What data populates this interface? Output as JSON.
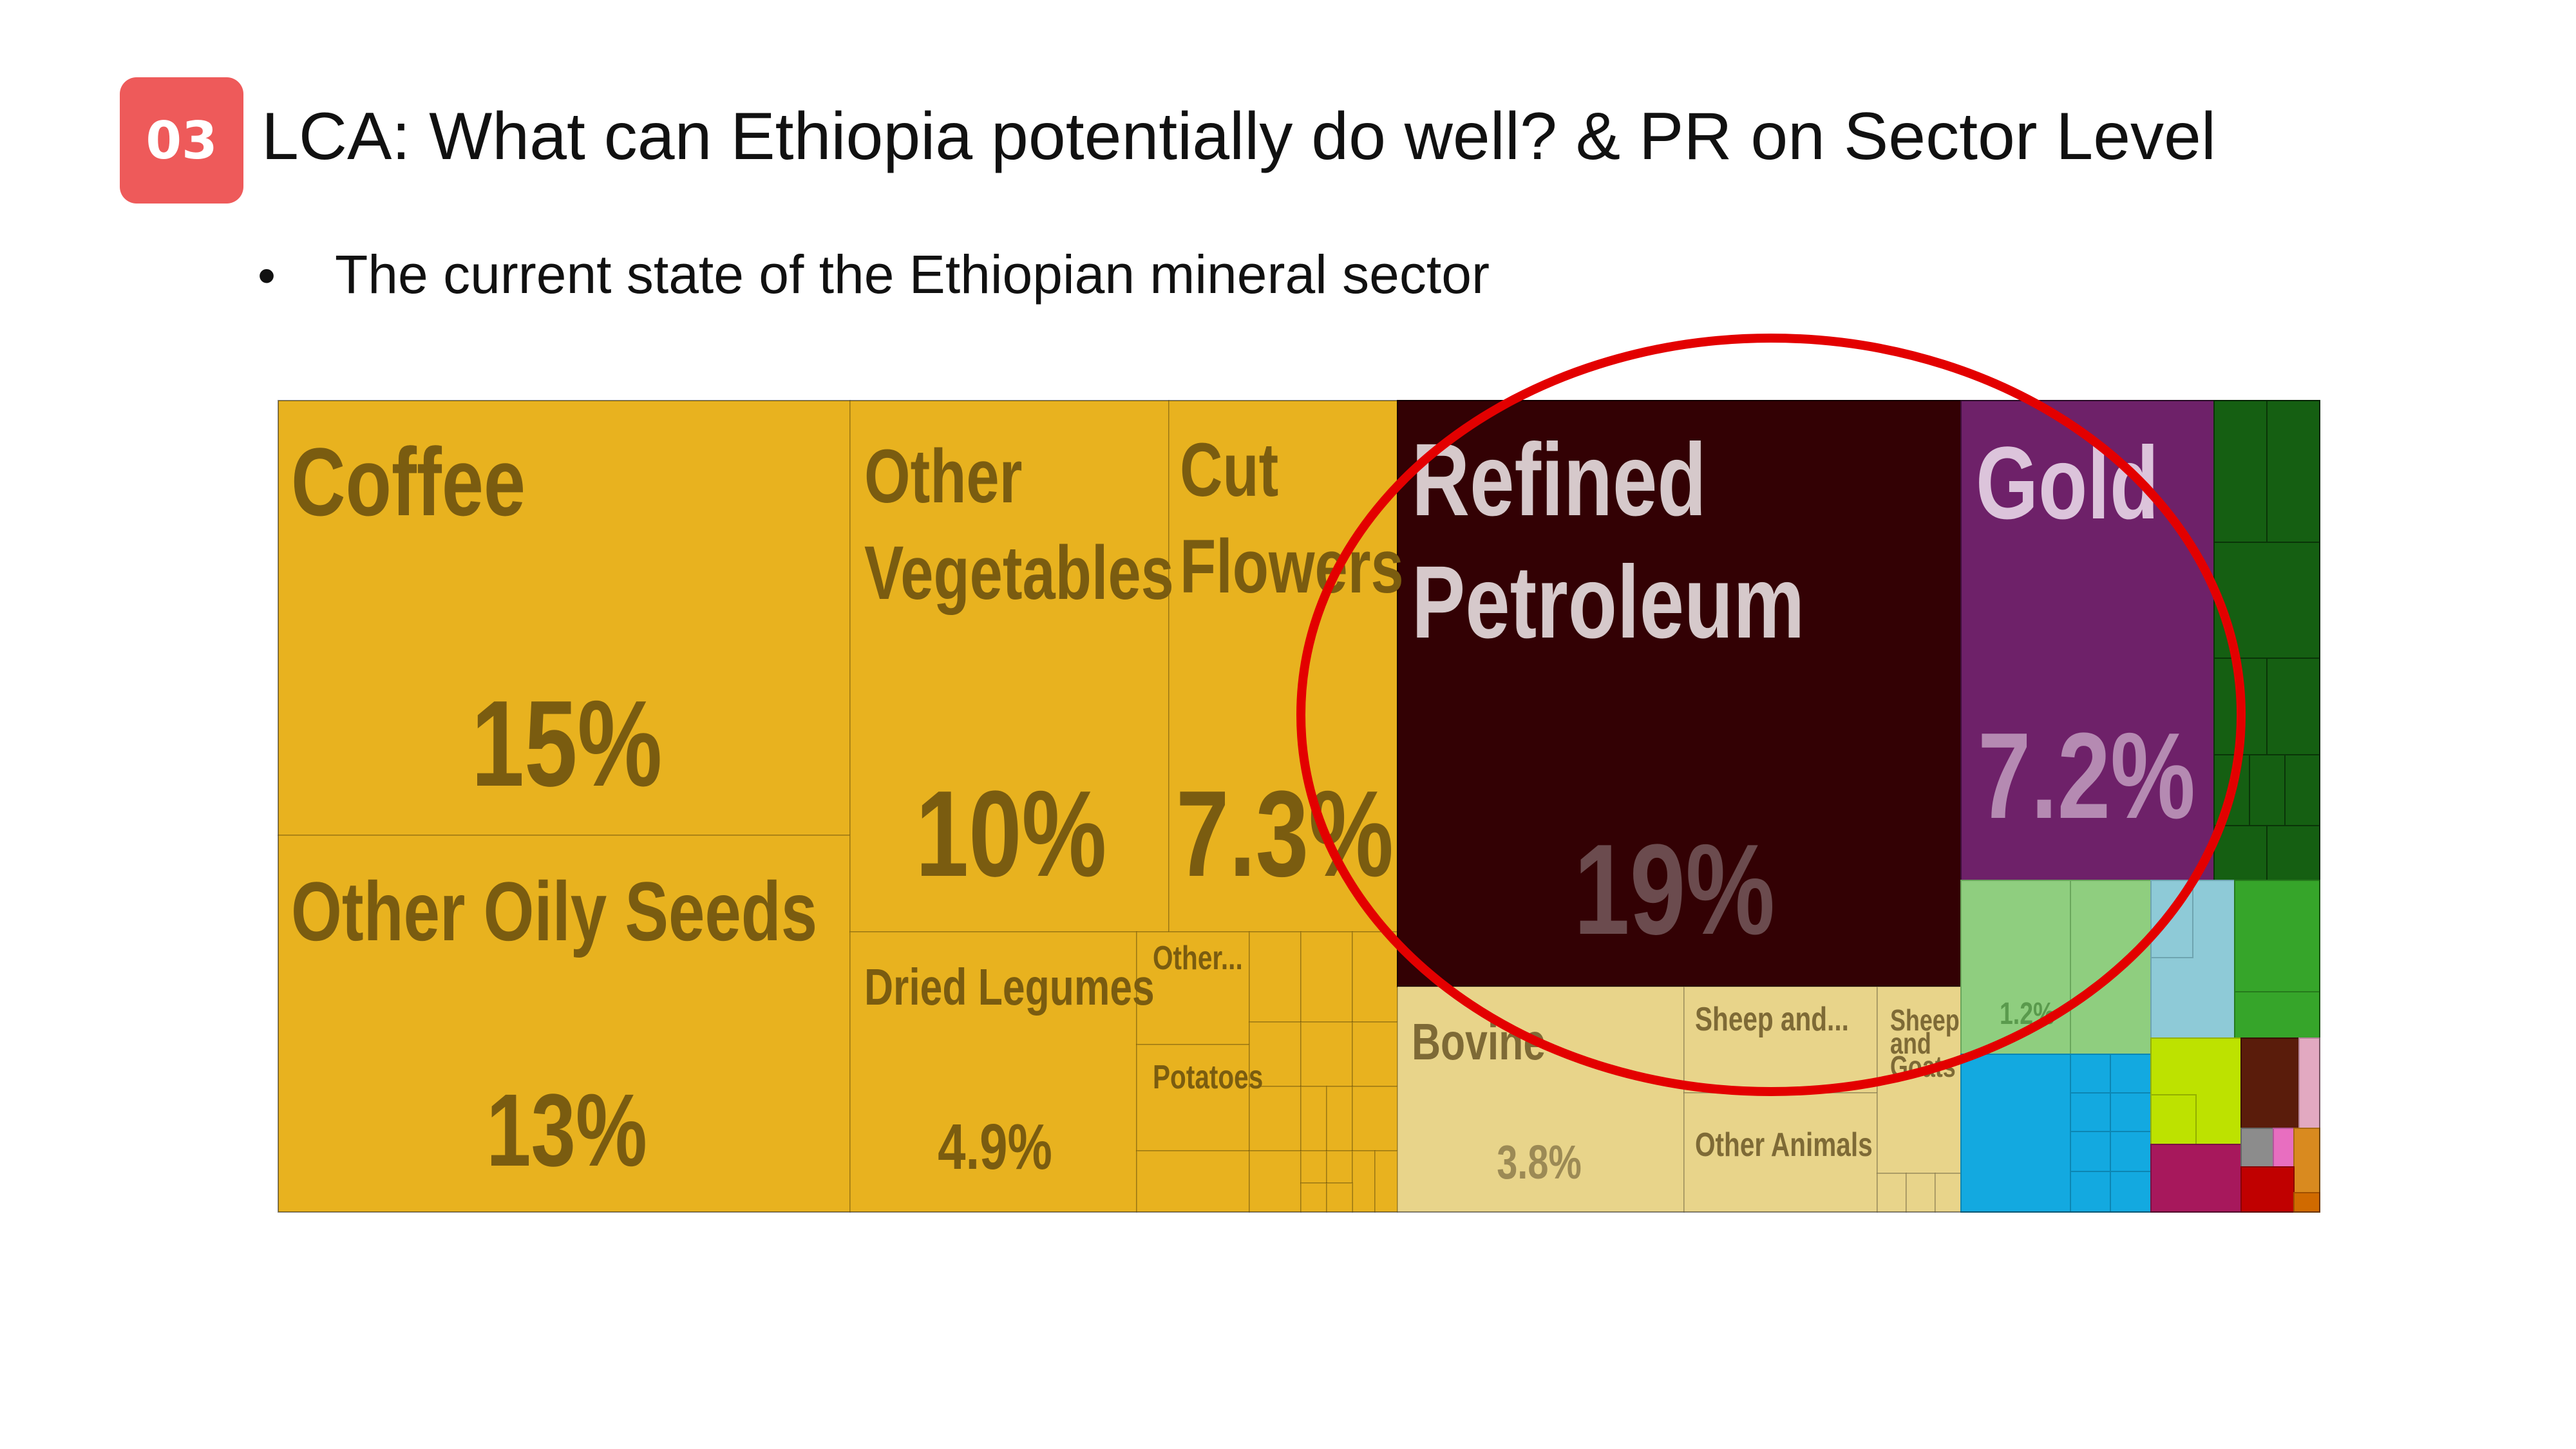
{
  "slide": {
    "badge": "03",
    "title": "LCA: What can Ethiopia potentially do well? & PR on Sector Level",
    "bullet": "The current state of the Ethiopian mineral sector"
  },
  "chart_data": {
    "type": "treemap",
    "colors": {
      "agriculture": "#e8b21f",
      "agriculture_dark_text": "#7a5c10",
      "animal": "#e8d48a",
      "petroleum": "#330104",
      "gold": "#6e2169",
      "highlight_circle": "#e30000"
    },
    "items": [
      {
        "label": "Coffee",
        "value": "15%"
      },
      {
        "label": "Other Oily Seeds",
        "value": "13%"
      },
      {
        "label": "Other Vegetables",
        "value": "10%"
      },
      {
        "label": "Cut Flowers",
        "value": "7.3%"
      },
      {
        "label": "Dried Legumes",
        "value": "4.9%"
      },
      {
        "label": "Other...",
        "value": ""
      },
      {
        "label": "Potatoes",
        "value": ""
      },
      {
        "label": "Refined Petroleum",
        "value": "19%"
      },
      {
        "label": "Bovine",
        "value": "3.8%"
      },
      {
        "label": "Sheep and...",
        "value": ""
      },
      {
        "label": "Other Animals",
        "value": ""
      },
      {
        "label": "Sheep and Goats",
        "value": ""
      },
      {
        "label": "Gold",
        "value": "7.2%"
      },
      {
        "label": "",
        "value": "1.2%"
      }
    ]
  }
}
